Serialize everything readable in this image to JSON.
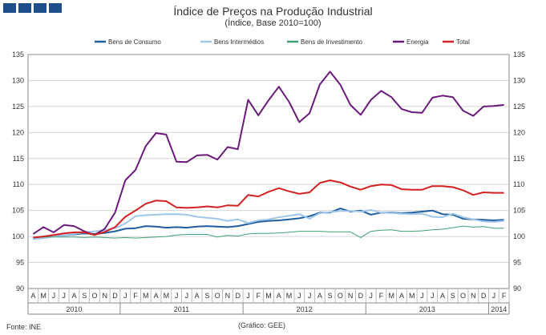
{
  "header": {
    "title": "Índice de Preços na Produção Industrial",
    "subtitle": "(Índice, Base 2010=100)",
    "logo_color": "#1f4e8c"
  },
  "footer": {
    "source": "Fonte: INE",
    "credit": "(Gráfico: GEE)"
  },
  "chart_data": {
    "type": "line",
    "title": "Índice de Preços na Produção Industrial",
    "subtitle": "(Índice, Base 2010=100)",
    "xlabel": "",
    "ylabel": "",
    "ylim": [
      90,
      135
    ],
    "yticks": [
      90,
      95,
      100,
      105,
      110,
      115,
      120,
      125,
      130,
      135
    ],
    "grid": true,
    "legend_position": "top",
    "x": [
      "A",
      "M",
      "J",
      "J",
      "A",
      "S",
      "O",
      "N",
      "D",
      "J",
      "F",
      "M",
      "A",
      "M",
      "J",
      "J",
      "A",
      "S",
      "O",
      "N",
      "D",
      "J",
      "F",
      "M",
      "A",
      "M",
      "J",
      "J",
      "A",
      "S",
      "O",
      "N",
      "D",
      "J",
      "F",
      "M",
      "A",
      "M",
      "J",
      "J",
      "A",
      "S",
      "O",
      "N",
      "D",
      "J",
      "F"
    ],
    "year_groups": [
      {
        "label": "2010",
        "start": 0,
        "count": 9
      },
      {
        "label": "2011",
        "start": 9,
        "count": 12
      },
      {
        "label": "2012",
        "start": 21,
        "count": 12
      },
      {
        "label": "2013",
        "start": 33,
        "count": 12
      },
      {
        "label": "2014",
        "start": 45,
        "count": 2
      }
    ],
    "series": [
      {
        "name": "Bens de Consumo",
        "color": "#1f5fa0",
        "width": 2,
        "values": [
          99.6,
          99.7,
          100.1,
          100.2,
          100.4,
          100.6,
          100.5,
          100.7,
          101.0,
          101.5,
          101.6,
          102.0,
          101.9,
          101.7,
          101.8,
          101.7,
          101.9,
          102.0,
          101.9,
          101.8,
          102.0,
          102.4,
          102.8,
          103.0,
          103.1,
          103.3,
          103.5,
          103.9,
          104.6,
          104.6,
          105.4,
          104.8,
          105.0,
          104.2,
          104.6,
          104.6,
          104.5,
          104.6,
          104.8,
          105.0,
          104.3,
          104.2,
          103.4,
          103.3,
          103.2,
          103.1,
          103.2
        ]
      },
      {
        "name": "Bens Intermédios",
        "color": "#9fc7ea",
        "width": 2,
        "values": [
          99.5,
          99.7,
          100.0,
          100.2,
          100.5,
          100.8,
          101.0,
          101.2,
          101.6,
          102.5,
          103.9,
          104.1,
          104.2,
          104.3,
          104.3,
          104.2,
          103.8,
          103.6,
          103.4,
          103.0,
          103.3,
          102.6,
          103.1,
          103.3,
          103.7,
          104.0,
          104.3,
          103.4,
          104.5,
          104.7,
          104.9,
          104.9,
          104.8,
          105.1,
          104.6,
          104.5,
          104.4,
          104.3,
          104.4,
          103.8,
          103.7,
          104.4,
          103.7,
          103.3,
          102.9,
          102.8,
          103.0
        ]
      },
      {
        "name": "Bens de Investimento",
        "color": "#3fa070",
        "width": 1,
        "values": [
          99.8,
          99.9,
          99.9,
          99.9,
          99.9,
          99.8,
          99.9,
          99.8,
          99.7,
          99.8,
          99.7,
          99.8,
          99.9,
          100.0,
          100.3,
          100.4,
          100.4,
          100.4,
          99.9,
          100.2,
          100.1,
          100.5,
          100.6,
          100.6,
          100.7,
          100.8,
          101.0,
          101.0,
          101.0,
          100.9,
          100.9,
          100.9,
          99.8,
          101.0,
          101.2,
          101.3,
          101.0,
          101.0,
          101.1,
          101.3,
          101.4,
          101.7,
          102.0,
          101.8,
          101.9,
          101.6,
          101.6
        ]
      },
      {
        "name": "Energia",
        "color": "#6a1a7a",
        "width": 2,
        "values": [
          100.5,
          101.8,
          100.8,
          102.2,
          102.0,
          101.0,
          100.3,
          101.5,
          104.6,
          110.8,
          112.8,
          117.4,
          119.9,
          119.6,
          114.4,
          114.3,
          115.6,
          115.7,
          114.8,
          117.2,
          116.8,
          126.3,
          123.3,
          126.2,
          128.8,
          125.9,
          122.0,
          123.7,
          129.2,
          131.7,
          129.2,
          125.3,
          123.4,
          126.3,
          128.0,
          126.8,
          124.5,
          123.9,
          123.8,
          126.7,
          127.1,
          126.8,
          124.2,
          123.2,
          125.0,
          125.1,
          125.3
        ]
      },
      {
        "name": "Total",
        "color": "#d42020",
        "width": 2,
        "values": [
          99.8,
          100.0,
          100.3,
          100.6,
          100.8,
          100.8,
          100.3,
          100.9,
          101.8,
          103.8,
          105.0,
          106.3,
          106.9,
          106.8,
          105.6,
          105.5,
          105.6,
          105.8,
          105.6,
          106.0,
          105.9,
          108.0,
          107.7,
          108.6,
          109.3,
          108.7,
          108.2,
          108.5,
          110.3,
          110.8,
          110.4,
          109.6,
          109.0,
          109.7,
          110.0,
          109.9,
          109.1,
          109.0,
          109.0,
          109.7,
          109.7,
          109.5,
          108.9,
          108.0,
          108.5,
          108.4,
          108.4
        ]
      }
    ]
  }
}
